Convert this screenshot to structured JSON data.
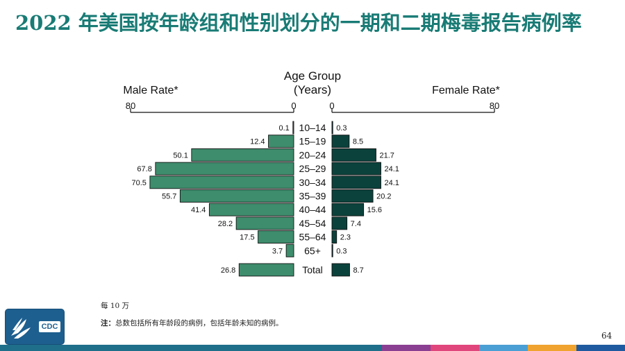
{
  "title": "2022 年美国按年龄组和性别划分的一期和二期梅毒报告病例率",
  "chart_data": {
    "type": "bar",
    "layout": "back-to-back horizontal",
    "center_title": [
      "Age Group",
      "(Years)"
    ],
    "left_title": "Male Rate*",
    "right_title": "Female Rate*",
    "axis_range": [
      0,
      80
    ],
    "left_ticks": [
      "80",
      "0"
    ],
    "right_ticks": [
      "0",
      "80"
    ],
    "categories": [
      "10–14",
      "15–19",
      "20–24",
      "25–29",
      "30–34",
      "35–39",
      "40–44",
      "45–54",
      "55–64",
      "65+",
      "Total"
    ],
    "series": [
      {
        "name": "Male Rate*",
        "side": "left",
        "color": "#3e8d6d",
        "values": [
          0.1,
          12.4,
          50.1,
          67.8,
          70.5,
          55.7,
          41.4,
          28.2,
          17.5,
          3.7,
          26.8
        ],
        "labels": [
          "0.1",
          "12.4",
          "50.1",
          "67.8",
          "70.5",
          "55.7",
          "41.4",
          "28.2",
          "17.5",
          "3.7",
          "26.8"
        ]
      },
      {
        "name": "Female Rate*",
        "side": "right",
        "color": "#0b423c",
        "values": [
          0.3,
          8.5,
          21.7,
          24.1,
          24.1,
          20.2,
          15.6,
          7.4,
          2.3,
          0.3,
          8.7
        ],
        "labels": [
          "0.3",
          "8.5",
          "21.7",
          "24.1",
          "24.1",
          "20.2",
          "15.6",
          "7.4",
          "2.3",
          "0.3",
          "8.7"
        ]
      }
    ]
  },
  "notes": {
    "per": "每 10 万",
    "label": "注：",
    "text": "总数包括所有年龄段的病例，包括年龄未知的病例。"
  },
  "logo": {
    "text": "CDC",
    "icon": "hhs-eagle-icon"
  },
  "page_number": "64",
  "footer_colors": [
    "#1f6f8b",
    "#1f6f8b",
    "#1f6f8b",
    "#1f6f8b",
    "#1f6f8b",
    "#8b3f92",
    "#e0457b",
    "#4a9fd4",
    "#f0a32e",
    "#1f5aa0"
  ]
}
